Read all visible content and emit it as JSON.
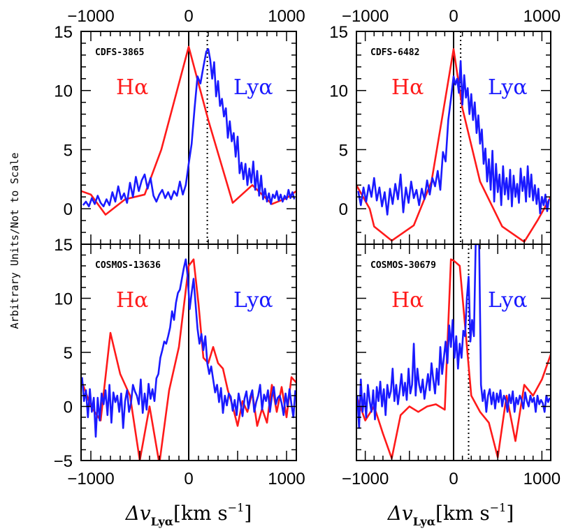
{
  "figure": {
    "ylabel": "Arbitrary Units/Not to Scale",
    "xlabel_main": "Δv",
    "xlabel_sub": "Lyα",
    "xlabel_unit": "[km s",
    "xlabel_exp": "−1",
    "xlabel_close": "]"
  },
  "colors": {
    "halpha": "#ff1a1a",
    "lya": "#1a1aff",
    "axis": "#000000"
  },
  "chart_data": [
    {
      "type": "line",
      "panel": "CDFS-3865",
      "xlim": [
        -1100,
        1100
      ],
      "ylim": [
        -3,
        15
      ],
      "yticks": [
        0,
        5,
        10,
        15
      ],
      "xticks": [
        -1000,
        0,
        1000
      ],
      "top_ticks": [
        -1000,
        0,
        1000
      ],
      "vline_solid": 0,
      "vline_dotted": 190,
      "label_halpha": "Hα",
      "label_lya": "Lyα",
      "series": [
        {
          "name": "Hα",
          "color": "#ff1a1a",
          "x": [
            -1100,
            -1000,
            -850,
            -650,
            -450,
            -280,
            0,
            200,
            450,
            650,
            850,
            1000,
            1100
          ],
          "y": [
            1.5,
            1.2,
            -0.5,
            0.8,
            1.2,
            5.0,
            13.7,
            7.5,
            0.5,
            2.0,
            0.4,
            0.9,
            1.5
          ]
        },
        {
          "name": "Lyα",
          "color": "#1a1aff",
          "x": [
            -1080,
            -1050,
            -1020,
            -990,
            -960,
            -930,
            -900,
            -870,
            -840,
            -810,
            -780,
            -750,
            -720,
            -690,
            -660,
            -630,
            -600,
            -570,
            -540,
            -510,
            -480,
            -450,
            -420,
            -390,
            -360,
            -330,
            -300,
            -270,
            -240,
            -210,
            -180,
            -150,
            -120,
            -90,
            -60,
            -30,
            0,
            30,
            60,
            90,
            120,
            150,
            180,
            200,
            220,
            240,
            260,
            280,
            300,
            320,
            340,
            360,
            380,
            400,
            420,
            440,
            460,
            480,
            500,
            520,
            540,
            560,
            580,
            600,
            620,
            640,
            660,
            680,
            700,
            720,
            740,
            760,
            780,
            800,
            820,
            840,
            860,
            880,
            900,
            920,
            940,
            960,
            980,
            1000,
            1020,
            1040,
            1060,
            1080
          ],
          "y": [
            0.3,
            0.6,
            0.2,
            0.9,
            0.4,
            1.1,
            0.5,
            0.2,
            0.8,
            0.3,
            1.4,
            0.6,
            1.9,
            0.8,
            1.3,
            0.5,
            2.2,
            1.0,
            2.7,
            1.5,
            2.4,
            2.9,
            1.7,
            2.6,
            1.1,
            0.6,
            1.2,
            1.6,
            0.9,
            1.4,
            0.8,
            1.5,
            1.1,
            2.3,
            1.2,
            2.0,
            3.8,
            5.5,
            8.5,
            11.2,
            10.6,
            12.0,
            13.3,
            13.5,
            12.6,
            11.0,
            12.4,
            9.5,
            10.8,
            8.7,
            9.3,
            7.8,
            8.5,
            6.0,
            7.4,
            5.7,
            6.4,
            4.4,
            6.1,
            3.0,
            3.9,
            2.5,
            3.8,
            2.0,
            3.4,
            2.2,
            4.0,
            1.6,
            3.2,
            1.1,
            2.8,
            0.8,
            1.7,
            0.6,
            1.3,
            0.4,
            1.2,
            0.9,
            1.5,
            0.7,
            1.2,
            0.6,
            1.1,
            0.8,
            1.6,
            0.9,
            1.4,
            0.8
          ]
        }
      ]
    },
    {
      "type": "line",
      "panel": "CDFS-6482",
      "xlim": [
        -1100,
        1100
      ],
      "ylim": [
        -3,
        15
      ],
      "yticks": [
        0,
        5,
        10,
        15
      ],
      "xticks": [
        -1000,
        0,
        1000
      ],
      "top_ticks": [
        -1000,
        0,
        1000
      ],
      "vline_solid": 0,
      "vline_dotted": 80,
      "label_halpha": "Hα",
      "label_lya": "Lyα",
      "series": [
        {
          "name": "Hα",
          "color": "#ff1a1a",
          "x": [
            -1100,
            -950,
            -900,
            -700,
            -450,
            -250,
            0,
            100,
            300,
            550,
            800,
            950,
            1100
          ],
          "y": [
            2.0,
            0.0,
            -1.5,
            -2.7,
            -1.4,
            2.3,
            13.5,
            8.5,
            2.3,
            -1.5,
            -2.8,
            -1.0,
            1.0
          ]
        },
        {
          "name": "Lyα",
          "color": "#1a1aff",
          "x": [
            -1080,
            -1050,
            -1020,
            -990,
            -960,
            -930,
            -900,
            -870,
            -840,
            -810,
            -780,
            -750,
            -720,
            -690,
            -660,
            -630,
            -600,
            -570,
            -540,
            -510,
            -480,
            -450,
            -420,
            -390,
            -360,
            -330,
            -300,
            -270,
            -240,
            -210,
            -180,
            -150,
            -120,
            -90,
            -60,
            -30,
            0,
            20,
            40,
            60,
            80,
            100,
            120,
            140,
            160,
            180,
            200,
            220,
            240,
            260,
            280,
            300,
            320,
            340,
            360,
            380,
            400,
            420,
            440,
            460,
            480,
            500,
            520,
            540,
            560,
            580,
            600,
            620,
            640,
            660,
            680,
            700,
            720,
            740,
            760,
            780,
            800,
            820,
            840,
            860,
            880,
            900,
            920,
            940,
            960,
            980,
            1000,
            1020,
            1040,
            1060,
            1080
          ],
          "y": [
            1.5,
            0.3,
            1.8,
            0.6,
            2.0,
            1.0,
            2.6,
            0.7,
            1.8,
            0.2,
            1.4,
            -0.5,
            1.7,
            0.4,
            2.1,
            0.8,
            2.9,
            -0.3,
            1.8,
            0.5,
            2.3,
            0.9,
            1.6,
            0.3,
            1.7,
            0.8,
            2.4,
            1.2,
            2.6,
            1.9,
            3.2,
            1.6,
            4.8,
            4.0,
            7.5,
            9.3,
            11.2,
            10.5,
            11.0,
            9.8,
            12.5,
            8.8,
            11.3,
            9.4,
            10.2,
            8.0,
            9.7,
            7.5,
            9.0,
            6.4,
            7.9,
            5.5,
            6.7,
            3.8,
            5.1,
            2.3,
            4.2,
            1.6,
            4.9,
            0.6,
            3.8,
            1.4,
            2.9,
            0.3,
            3.6,
            1.2,
            2.6,
            0.8,
            3.3,
            0.2,
            2.8,
            1.0,
            2.1,
            0.5,
            3.4,
            1.5,
            2.7,
            0.6,
            3.6,
            1.0,
            2.9,
            0.7,
            2.0,
            0.4,
            1.7,
            -0.4,
            1.0,
            0.3,
            1.2,
            -0.2,
            0.8
          ]
        }
      ]
    },
    {
      "type": "line",
      "panel": "COSMOS-13636",
      "xlim": [
        -1100,
        1100
      ],
      "ylim": [
        -5,
        15
      ],
      "yticks": [
        -5,
        0,
        5,
        10,
        15
      ],
      "xticks": [
        -1000,
        0,
        1000
      ],
      "vline_solid": 0,
      "label_halpha": "Hα",
      "label_lya": "Lyα",
      "series": [
        {
          "name": "Hα",
          "color": "#ff1a1a",
          "x": [
            -1100,
            -1000,
            -900,
            -800,
            -700,
            -600,
            -500,
            -400,
            -300,
            -200,
            -100,
            0,
            50,
            100,
            150,
            200,
            250,
            300,
            350,
            400,
            450,
            500,
            550,
            600,
            650,
            700,
            750,
            800,
            850,
            900,
            950,
            1000,
            1050,
            1100
          ],
          "y": [
            2.5,
            0.0,
            -1.3,
            6.8,
            3.0,
            1.0,
            -5.0,
            0.0,
            -5.3,
            1.5,
            5.5,
            13.0,
            13.6,
            9.5,
            4.5,
            4.0,
            5.5,
            4.0,
            3.5,
            1.5,
            0.0,
            -1.8,
            0.5,
            -0.5,
            1.3,
            -1.8,
            -0.2,
            -1.5,
            2.0,
            -0.5,
            1.8,
            -1.0,
            2.7,
            2.2
          ]
        },
        {
          "name": "Lyα",
          "color": "#1a1aff",
          "x": [
            -1090,
            -1070,
            -1050,
            -1030,
            -1010,
            -990,
            -970,
            -950,
            -930,
            -910,
            -890,
            -870,
            -850,
            -830,
            -810,
            -790,
            -770,
            -750,
            -730,
            -710,
            -690,
            -670,
            -650,
            -630,
            -610,
            -590,
            -570,
            -550,
            -530,
            -510,
            -490,
            -470,
            -450,
            -430,
            -410,
            -390,
            -370,
            -350,
            -330,
            -310,
            -290,
            -270,
            -250,
            -230,
            -210,
            -190,
            -170,
            -150,
            -130,
            -110,
            -90,
            -70,
            -50,
            -30,
            -10,
            10,
            30,
            50,
            70,
            90,
            110,
            130,
            150,
            170,
            190,
            210,
            230,
            250,
            270,
            290,
            310,
            330,
            350,
            370,
            390,
            410,
            430,
            450,
            470,
            490,
            510,
            530,
            550,
            570,
            590,
            610,
            630,
            650,
            670,
            690,
            710,
            730,
            750,
            770,
            790,
            810,
            830,
            850,
            870,
            890,
            910,
            930,
            950,
            970,
            990,
            1010,
            1030,
            1050,
            1070,
            1090
          ],
          "y": [
            2.7,
            0.5,
            1.5,
            -1.0,
            1.6,
            -0.5,
            0.8,
            -2.8,
            0.8,
            -1.3,
            1.2,
            0.2,
            1.5,
            -0.8,
            2.0,
            -1.5,
            1.3,
            0.4,
            1.0,
            -0.5,
            1.2,
            -2.0,
            0.5,
            1.5,
            -0.5,
            0.3,
            2.0,
            1.4,
            1.0,
            0.2,
            2.5,
            -0.6,
            1.2,
            -0.3,
            2.1,
            0.7,
            1.6,
            0.5,
            2.6,
            3.0,
            4.5,
            5.2,
            6.0,
            5.8,
            6.5,
            7.3,
            8.8,
            8.0,
            9.6,
            10.5,
            10.8,
            11.8,
            12.8,
            13.6,
            12.0,
            9.0,
            10.5,
            11.8,
            9.5,
            7.2,
            5.8,
            6.7,
            5.2,
            6.5,
            4.0,
            3.0,
            3.7,
            2.5,
            1.3,
            2.0,
            0.4,
            1.7,
            -0.6,
            1.0,
            0.1,
            1.2,
            0.9,
            -0.4,
            0.6,
            -0.8,
            1.2,
            0.3,
            -0.9,
            0.7,
            1.4,
            -0.2,
            0.9,
            1.5,
            -0.5,
            0.4,
            1.0,
            2.0,
            -0.3,
            1.1,
            0.5,
            1.5,
            -0.5,
            0.9,
            1.8,
            0.2,
            0.8,
            1.0,
            0.3,
            -0.8,
            1.2,
            0.0,
            1.6,
            0.2,
            -1.0,
            1.5
          ]
        }
      ]
    },
    {
      "type": "line",
      "panel": "COSMOS-30679",
      "xlim": [
        -1100,
        1100
      ],
      "ylim": [
        -5,
        15
      ],
      "yticks": [
        -5,
        0,
        5,
        10,
        15
      ],
      "xticks": [
        -1000,
        0,
        1000
      ],
      "vline_solid": 0,
      "vline_dotted": 170,
      "label_halpha": "Hα",
      "label_lya": "Lyα",
      "series": [
        {
          "name": "Hα",
          "color": "#ff1a1a",
          "x": [
            -1100,
            -1000,
            -900,
            -800,
            -700,
            -600,
            -500,
            -400,
            -300,
            -200,
            -100,
            -30,
            0,
            70,
            200,
            300,
            400,
            500,
            600,
            700,
            800,
            900,
            1000,
            1100
          ],
          "y": [
            1.0,
            -1.3,
            0.0,
            -2.5,
            -4.8,
            -0.8,
            0.0,
            -0.5,
            0.0,
            0.2,
            -0.3,
            13.6,
            13.5,
            13.0,
            1.0,
            -0.5,
            -1.5,
            -4.7,
            1.0,
            -3.2,
            2.0,
            1.0,
            2.5,
            4.8
          ]
        },
        {
          "name": "Lyα",
          "color": "#1a1aff",
          "x": [
            -1090,
            -1070,
            -1050,
            -1030,
            -1010,
            -990,
            -970,
            -950,
            -930,
            -910,
            -890,
            -870,
            -850,
            -830,
            -810,
            -790,
            -770,
            -750,
            -730,
            -710,
            -690,
            -670,
            -650,
            -630,
            -610,
            -590,
            -570,
            -550,
            -530,
            -510,
            -490,
            -470,
            -450,
            -430,
            -410,
            -390,
            -370,
            -350,
            -330,
            -310,
            -290,
            -270,
            -250,
            -230,
            -210,
            -190,
            -170,
            -150,
            -130,
            -110,
            -90,
            -70,
            -50,
            -30,
            -10,
            10,
            30,
            50,
            70,
            90,
            110,
            130,
            150,
            170,
            190,
            210,
            230,
            250,
            270,
            290,
            310,
            330,
            350,
            370,
            390,
            410,
            430,
            450,
            470,
            490,
            510,
            530,
            550,
            570,
            590,
            610,
            630,
            650,
            670,
            690,
            710,
            730,
            750,
            770,
            790,
            810,
            830,
            850,
            870,
            890,
            910,
            930,
            950,
            970,
            990,
            1010,
            1030,
            1050,
            1070,
            1090
          ],
          "y": [
            1.0,
            -2.0,
            2.5,
            -0.5,
            1.2,
            -1.0,
            2.0,
            0.5,
            -0.5,
            1.5,
            -1.2,
            1.8,
            0.5,
            2.3,
            0.0,
            1.6,
            -0.8,
            2.0,
            0.8,
            1.4,
            3.5,
            0.5,
            2.0,
            0.2,
            1.5,
            3.0,
            1.0,
            2.2,
            0.6,
            3.5,
            1.2,
            2.0,
            5.8,
            1.0,
            3.5,
            2.0,
            1.3,
            2.5,
            0.7,
            1.8,
            3.0,
            1.5,
            4.0,
            2.5,
            1.2,
            3.5,
            2.0,
            5.5,
            3.0,
            4.5,
            6.0,
            4.0,
            7.5,
            5.5,
            8.0,
            4.5,
            6.5,
            3.5,
            5.8,
            4.5,
            7.0,
            6.5,
            10.0,
            12.0,
            6.0,
            8.0,
            6.5,
            15.0,
            15.0,
            15.0,
            2.0,
            0.5,
            1.5,
            -0.5,
            1.0,
            1.6,
            0.2,
            1.3,
            -0.2,
            1.2,
            0.4,
            1.5,
            0.0,
            1.0,
            0.6,
            -0.5,
            1.1,
            0.3,
            1.4,
            -0.5,
            0.8,
            0.2,
            1.0,
            0.6,
            -0.2,
            1.3,
            0.5,
            0.0,
            1.0,
            0.4,
            0.8,
            -0.5,
            1.0,
            0.2,
            0.6,
            0.3,
            -0.5,
            1.0,
            0.4,
            0.8
          ]
        }
      ]
    }
  ]
}
